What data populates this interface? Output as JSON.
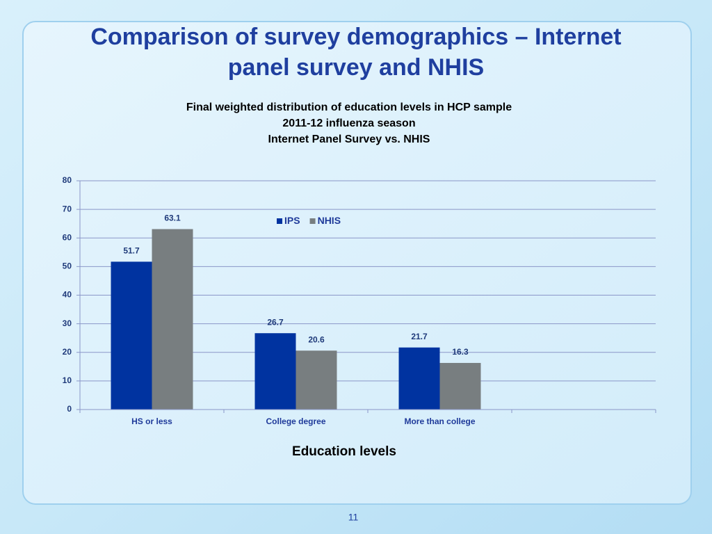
{
  "slide": {
    "title": [
      "Comparison of survey demographics – Internet",
      "panel survey and NHIS"
    ],
    "page_number": "11"
  },
  "chart_data": {
    "type": "bar",
    "title": [
      "Final weighted distribution of education levels in HCP sample",
      "2011-12 influenza season",
      "Internet Panel Survey vs. NHIS"
    ],
    "x_label": "Education levels",
    "categories": [
      "HS or less",
      "College degree",
      "More than college",
      null
    ],
    "series": [
      {
        "name": "IPS",
        "color": "#0033a0",
        "values": [
          51.7,
          26.7,
          21.7,
          null
        ]
      },
      {
        "name": "NHIS",
        "color": "#787e80",
        "values": [
          63.1,
          20.6,
          16.3,
          null
        ]
      }
    ],
    "ylim": [
      0,
      80
    ],
    "yticks": [
      0,
      10,
      20,
      30,
      40,
      50,
      60,
      70,
      80
    ],
    "grid": true,
    "legend": "top"
  }
}
